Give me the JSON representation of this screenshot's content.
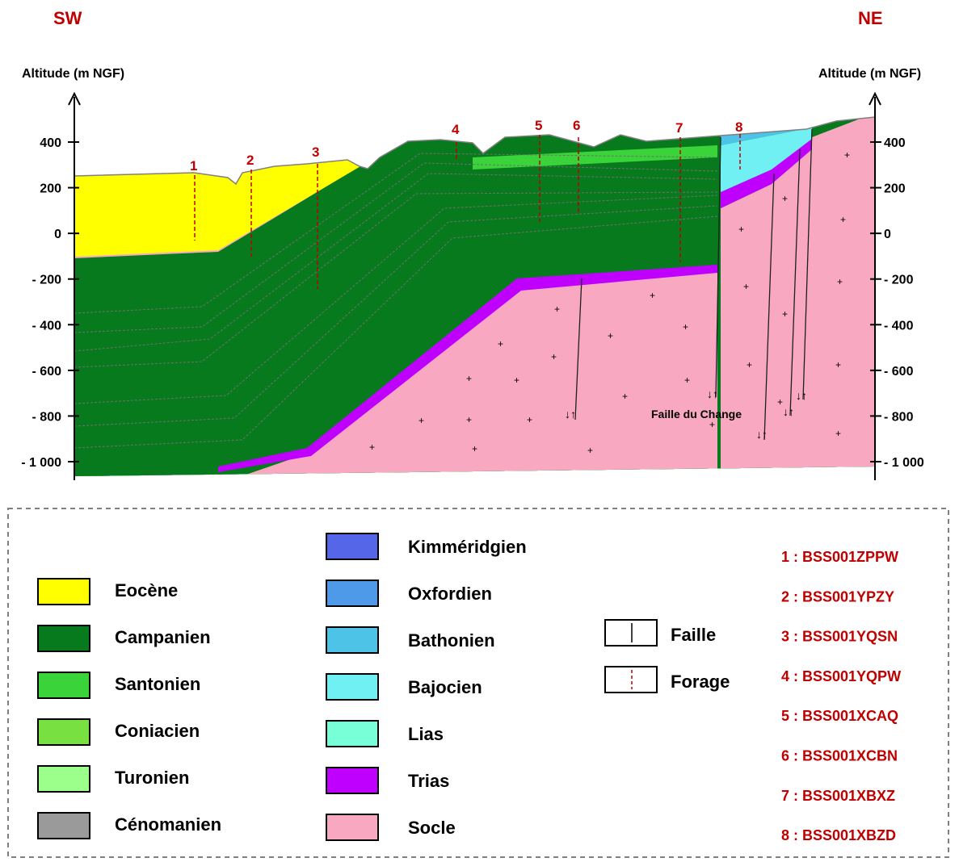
{
  "directions": {
    "left": "SW",
    "right": "NE"
  },
  "axis": {
    "left_title": "Altitude (m NGF)",
    "right_title": "Altitude (m NGF)",
    "ticks": [
      {
        "value": 400,
        "label": "400"
      },
      {
        "value": 200,
        "label": "200"
      },
      {
        "value": 0,
        "label": "0"
      },
      {
        "value": -200,
        "label": "- 200"
      },
      {
        "value": -400,
        "label": "- 400"
      },
      {
        "value": -600,
        "label": "- 600"
      },
      {
        "value": -800,
        "label": "- 800"
      },
      {
        "value": -1000,
        "label": "- 1 000"
      }
    ]
  },
  "wells": [
    {
      "num": "1",
      "ref": "1 : BSS001ZPPW"
    },
    {
      "num": "2",
      "ref": "2 : BSS001YPZY"
    },
    {
      "num": "3",
      "ref": "3 : BSS001YQSN"
    },
    {
      "num": "4",
      "ref": "4 : BSS001YQPW"
    },
    {
      "num": "5",
      "ref": "5 : BSS001XCAQ"
    },
    {
      "num": "6",
      "ref": "6 : BSS001XCBN"
    },
    {
      "num": "7",
      "ref": "7 : BSS001XBXZ"
    },
    {
      "num": "8",
      "ref": "8 : BSS001XBZD"
    }
  ],
  "fault_label": "Faille du Change",
  "legend": {
    "col1": [
      {
        "name": "Eocène",
        "color": "#ffff00"
      },
      {
        "name": "Campanien",
        "color": "#067a1c"
      },
      {
        "name": "Santonien",
        "color": "#3ad33a"
      },
      {
        "name": "Coniacien",
        "color": "#78e040"
      },
      {
        "name": "Turonien",
        "color": "#9cff8c"
      },
      {
        "name": "Cénomanien",
        "color": "#9a9a9a"
      }
    ],
    "col2": [
      {
        "name": "Kimméridgien",
        "color": "#5566e8"
      },
      {
        "name": "Oxfordien",
        "color": "#4f9ae8"
      },
      {
        "name": "Bathonien",
        "color": "#4ec3e8"
      },
      {
        "name": "Bajocien",
        "color": "#70f0f2"
      },
      {
        "name": "Lias",
        "color": "#78ffd8"
      },
      {
        "name": "Trias",
        "color": "#c000ff"
      },
      {
        "name": "Socle",
        "color": "#f8a8c0"
      }
    ],
    "symbols": [
      {
        "name": "Faille",
        "icon": "fault-line-icon"
      },
      {
        "name": "Forage",
        "icon": "borehole-icon"
      }
    ]
  }
}
